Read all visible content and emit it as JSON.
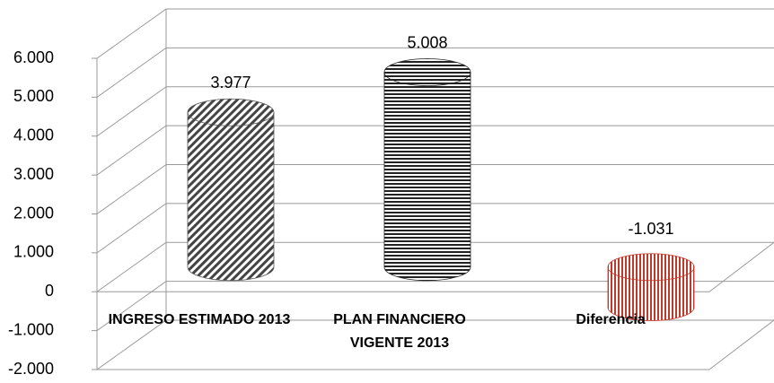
{
  "chart_data": {
    "type": "cylinder",
    "categories": [
      "INGRESO ESTIMADO 2013",
      "PLAN FINANCIERO VIGENTE 2013",
      "Diferencia"
    ],
    "values": [
      3977,
      5008,
      -1031
    ],
    "value_labels": [
      "3.977",
      "5.008",
      "-1.031"
    ],
    "colors": [
      "#555555",
      "#222222",
      "#c0392b"
    ],
    "ylim": [
      -2000,
      6000
    ],
    "yticks": [
      {
        "value": -2000,
        "label": "-2.000"
      },
      {
        "value": -1000,
        "label": "-1.000"
      },
      0,
      {
        "value": 1000,
        "label": "1.000"
      },
      {
        "value": 2000,
        "label": "2.000"
      },
      {
        "value": 3000,
        "label": "3.000"
      },
      {
        "value": 4000,
        "label": "4.000"
      },
      {
        "value": 5000,
        "label": "5.000"
      },
      {
        "value": 6000,
        "label": "6.000"
      }
    ],
    "grid": true
  }
}
